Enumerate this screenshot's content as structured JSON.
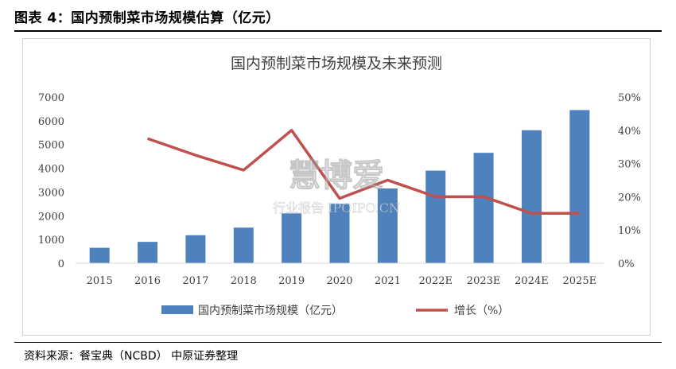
{
  "figure_title": "图表 4：国内预制菜市场规模估算（亿元）",
  "source_note": "资料来源：餐宝典（NCBD）    中原证券整理",
  "chart_data": {
    "type": "bar",
    "title": "国内预制菜市场规模及未来预测",
    "categories": [
      "2015",
      "2016",
      "2017",
      "2018",
      "2019",
      "2020",
      "2021",
      "2022E",
      "2023E",
      "2024E",
      "2025E"
    ],
    "series": [
      {
        "name": "国内预制菜市场规模（亿元）",
        "type": "bar",
        "axis": "left",
        "values": [
          650,
          900,
          1180,
          1500,
          2100,
          2500,
          3150,
          3900,
          4650,
          5600,
          6450
        ]
      },
      {
        "name": "增长（%）",
        "type": "line",
        "axis": "right",
        "values": [
          null,
          37.5,
          32.5,
          28.0,
          40.0,
          19.5,
          25.0,
          20.0,
          20.0,
          15.0,
          15.0
        ]
      }
    ],
    "yleft_ticks": [
      "0",
      "1000",
      "2000",
      "3000",
      "4000",
      "5000",
      "6000",
      "7000"
    ],
    "yleft_lim": [
      0,
      7000
    ],
    "yright_ticks": [
      "0%",
      "10%",
      "20%",
      "30%",
      "40%",
      "50%"
    ],
    "yright_lim": [
      0,
      50
    ],
    "grid": false,
    "legend_position": "bottom",
    "colors": {
      "bar": "#4f81bd",
      "line": "#c0504d"
    }
  },
  "watermark": {
    "line1": "行业报告",
    "line2": "IPOIPO.CN",
    "brand": "慧博爱"
  }
}
